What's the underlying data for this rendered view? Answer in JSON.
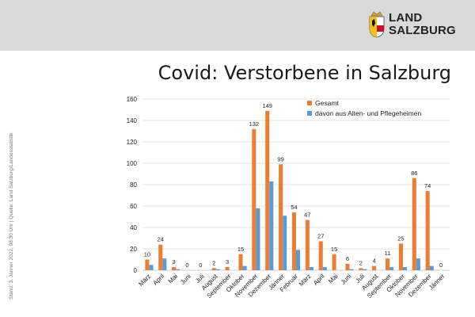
{
  "header": {
    "logo_line1": "LAND",
    "logo_line2": "SALZBURG"
  },
  "title": "Covid: Verstorbene in Salzburg",
  "side_note": "Stand: 3. Jänner  2022, 08:30 Uhr  |  Quelle: Land Salzburg/Landesstatistik",
  "colors": {
    "gesamt": "#ed7d31",
    "heime": "#5b9bd5",
    "header_band": "#d9d9d9",
    "gridline": "#d9d9d9"
  },
  "chart_data": {
    "type": "bar",
    "title": "Covid: Verstorbene in Salzburg",
    "xlabel": "",
    "ylabel": "",
    "ylim": [
      0,
      160
    ],
    "yticks": [
      0,
      20,
      40,
      60,
      80,
      100,
      120,
      140,
      160
    ],
    "grid": true,
    "legend_position": "top-right",
    "categories": [
      "März",
      "April",
      "Mai",
      "Juni",
      "Juli",
      "August",
      "September",
      "Oktober",
      "November",
      "Dezember",
      "Jänner",
      "Februar",
      "März",
      "April",
      "Mai",
      "Juni",
      "Juli",
      "August",
      "September",
      "Oktober",
      "November",
      "Dezember",
      "Jänner"
    ],
    "series": [
      {
        "name": "Gesamt",
        "values": [
          10,
          24,
          3,
          0,
          0,
          2,
          3,
          15,
          132,
          149,
          99,
          54,
          47,
          27,
          15,
          6,
          2,
          4,
          11,
          25,
          86,
          74,
          0
        ],
        "data_labels": true
      },
      {
        "name": "davon aus Alten- und Pflegeheimen",
        "values": [
          5,
          11,
          1,
          0,
          0,
          1,
          0,
          4,
          58,
          83,
          51,
          19,
          3,
          3,
          0,
          1,
          1,
          0,
          3,
          3,
          11,
          4,
          0
        ],
        "data_labels": false
      }
    ]
  }
}
